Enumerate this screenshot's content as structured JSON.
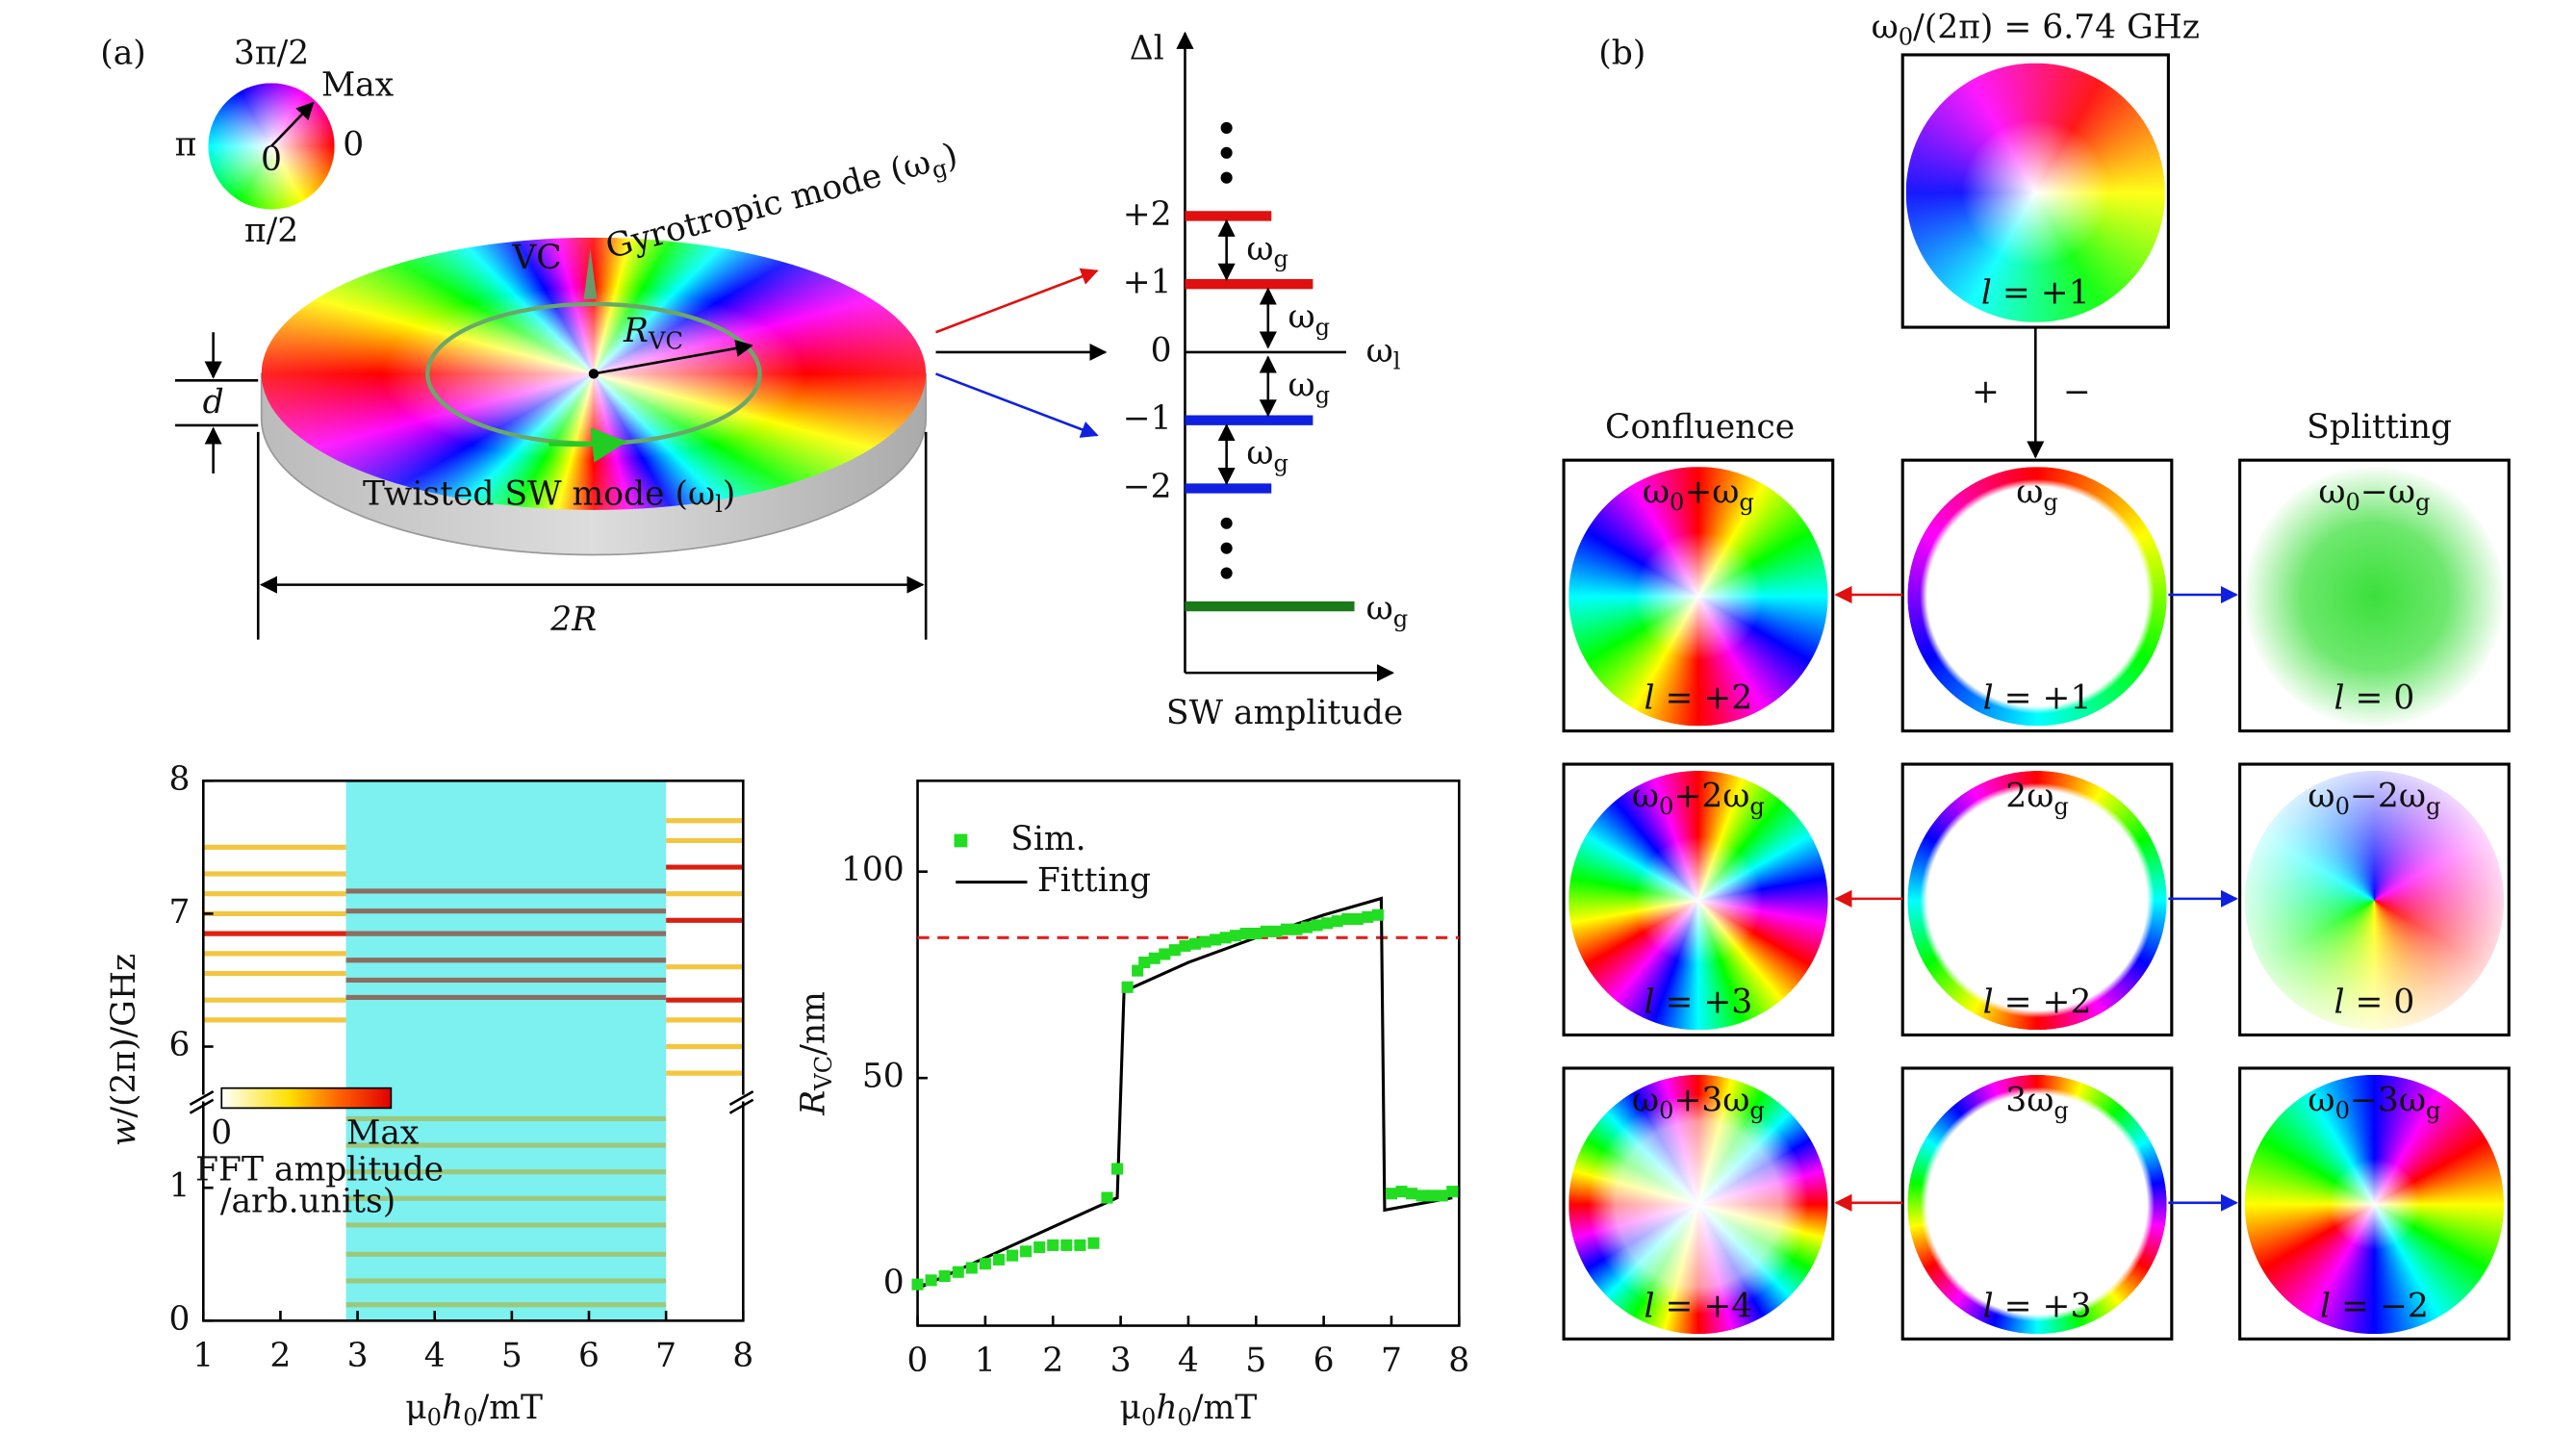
{
  "panel_a": {
    "label": "(a)",
    "wheel": {
      "top": "3π/2",
      "bottom": "π/2",
      "left": "π",
      "right": "0",
      "center": "0",
      "max": "Max"
    },
    "disk": {
      "vc": "VC",
      "gyro": [
        "Gyrotropic mode (ω",
        {
          "sub": "g"
        },
        ")"
      ],
      "rvc": [
        {
          "i": "R"
        },
        {
          "sub": "VC"
        }
      ],
      "twisted": [
        "Twisted SW mode (ω",
        {
          "sub": "l"
        },
        ")"
      ],
      "d": "d",
      "width": "2R"
    },
    "levels": {
      "axis_label": "Δl",
      "x_label": "SW amplitude",
      "ticks": [
        "+2",
        "+1",
        "0",
        "−1",
        "−2"
      ],
      "spacing": [
        "ω",
        {
          "sub": "g"
        }
      ],
      "zero_label": [
        "ω",
        {
          "sub": "l"
        }
      ],
      "ground_label": [
        "ω",
        {
          "sub": "g"
        }
      ]
    }
  },
  "chart_data": [
    {
      "type": "spectrogram",
      "xlabel": [
        "μ",
        {
          "sub": "0"
        },
        {
          "i": "h"
        },
        {
          "sub": "0"
        },
        "/mT"
      ],
      "ylabel": [
        {
          "i": "w"
        },
        "/(2π)/GHz"
      ],
      "xlim": [
        1,
        8
      ],
      "xticks": [
        1,
        2,
        3,
        4,
        5,
        6,
        7,
        8
      ],
      "ylim_lower": [
        0,
        1.65
      ],
      "ylim_upper": [
        5.65,
        8
      ],
      "yticks": [
        0,
        1,
        6,
        7,
        8
      ],
      "shaded_region": {
        "x": [
          2.85,
          7
        ],
        "color": "#7df0f0"
      },
      "colorbar": {
        "min_label": "0",
        "max_label": "Max",
        "title": "FFT amplitude",
        "units": "/arb.units)"
      },
      "modes": [
        {
          "x_range": [
            2.85,
            7
          ],
          "color": "#8c6e60",
          "values": [
            7.17,
            7.02,
            6.85,
            6.65,
            6.5,
            6.37
          ]
        },
        {
          "x_range": [
            2.85,
            7
          ],
          "color": "#9cc87c",
          "values": [
            0.12,
            0.3,
            0.5,
            0.72,
            0.92,
            1.12,
            1.32,
            1.52
          ]
        },
        {
          "x_range": [
            1,
            2.85
          ],
          "color": "#f2c640",
          "values": [
            7.5,
            7.3,
            7.15,
            7.0,
            6.7,
            6.55,
            6.35,
            6.2
          ]
        },
        {
          "x_range": [
            1,
            2.85
          ],
          "color": "#e02010",
          "values": [
            6.85
          ]
        },
        {
          "x_range": [
            7,
            8
          ],
          "color": "#f2c640",
          "values": [
            7.7,
            7.55,
            7.15,
            6.6,
            6.2,
            6.0,
            5.8
          ]
        },
        {
          "x_range": [
            7,
            8
          ],
          "color": "#d82010",
          "values": [
            7.35,
            6.95,
            6.35
          ]
        }
      ]
    },
    {
      "type": "scatter-line",
      "xlabel": [
        "μ",
        {
          "sub": "0"
        },
        {
          "i": "h"
        },
        {
          "sub": "0"
        },
        "/mT"
      ],
      "ylabel": [
        {
          "i": "R"
        },
        {
          "sub": "VC"
        },
        "/nm"
      ],
      "xlim": [
        0,
        8
      ],
      "xticks": [
        0,
        1,
        2,
        3,
        4,
        5,
        6,
        7,
        8
      ],
      "ylim": [
        -10,
        122
      ],
      "yticks": [
        0,
        50,
        100
      ],
      "hline": {
        "value": 84,
        "color": "#e02020"
      },
      "series": [
        {
          "name": "Sim.",
          "color": "#22dd22",
          "x": [
            0,
            0.2,
            0.4,
            0.6,
            0.8,
            1.0,
            1.2,
            1.4,
            1.6,
            1.8,
            2.0,
            2.2,
            2.4,
            2.6,
            2.8,
            2.95,
            3.1,
            3.25,
            3.35,
            3.5,
            3.65,
            3.8,
            3.95,
            4.1,
            4.25,
            4.4,
            4.55,
            4.7,
            4.85,
            5.0,
            5.15,
            5.3,
            5.45,
            5.6,
            5.75,
            5.9,
            6.05,
            6.2,
            6.35,
            6.5,
            6.65,
            6.8,
            7.0,
            7.15,
            7.3,
            7.45,
            7.6,
            7.75,
            7.9
          ],
          "values": [
            0,
            1,
            2,
            3,
            4,
            5,
            6,
            7,
            8,
            9,
            9.5,
            9.5,
            9.5,
            10,
            21,
            28,
            72,
            76,
            78,
            79,
            80,
            81,
            82,
            82.5,
            83,
            83.5,
            84,
            84.5,
            85,
            85,
            85.5,
            85.5,
            86,
            86,
            86.5,
            87,
            87.5,
            88,
            88.5,
            88.5,
            89,
            89.5,
            22,
            22.5,
            22,
            21.5,
            21.5,
            21.5,
            22.5
          ]
        },
        {
          "name": "Fitting",
          "color": "#000000",
          "x": [
            0,
            2.95,
            3.05,
            4,
            5,
            6,
            6.85,
            6.9,
            7.9
          ],
          "values": [
            -1,
            21,
            71,
            78,
            84,
            89.5,
            93.5,
            18,
            21
          ]
        }
      ]
    }
  ],
  "panel_b": {
    "label": "(b)",
    "top": {
      "title": [
        "ω",
        {
          "sub": "0"
        },
        "/(2π) = 6.74 GHz"
      ],
      "l": [
        {
          "i": "l"
        },
        " = +1"
      ]
    },
    "plus": "+",
    "minus": "−",
    "confluence": "Confluence",
    "splitting": "Splitting",
    "rows": [
      [
        {
          "freq": [
            "ω",
            {
              "sub": "0"
            },
            "+ω",
            {
              "sub": "g"
            }
          ],
          "l": [
            {
              "i": "l"
            },
            " = +2"
          ]
        },
        {
          "freq": [
            "ω",
            {
              "sub": "g"
            }
          ],
          "l": [
            {
              "i": "l"
            },
            " = +1"
          ]
        },
        {
          "freq": [
            "ω",
            {
              "sub": "0"
            },
            "−ω",
            {
              "sub": "g"
            }
          ],
          "l": [
            {
              "i": "l"
            },
            " = 0"
          ]
        }
      ],
      [
        {
          "freq": [
            "ω",
            {
              "sub": "0"
            },
            "+2ω",
            {
              "sub": "g"
            }
          ],
          "l": [
            {
              "i": "l"
            },
            " = +3"
          ]
        },
        {
          "freq": [
            "2ω",
            {
              "sub": "g"
            }
          ],
          "l": [
            {
              "i": "l"
            },
            " = +2"
          ]
        },
        {
          "freq": [
            "ω",
            {
              "sub": "0"
            },
            "−2ω",
            {
              "sub": "g"
            }
          ],
          "l": [
            {
              "i": "l"
            },
            " = 0"
          ]
        }
      ],
      [
        {
          "freq": [
            "ω",
            {
              "sub": "0"
            },
            "+3ω",
            {
              "sub": "g"
            }
          ],
          "l": [
            {
              "i": "l"
            },
            " = +4"
          ]
        },
        {
          "freq": [
            "3ω",
            {
              "sub": "g"
            }
          ],
          "l": [
            {
              "i": "l"
            },
            " = +3"
          ]
        },
        {
          "freq": [
            "ω",
            {
              "sub": "0"
            },
            "−3ω",
            {
              "sub": "g"
            }
          ],
          "l": [
            {
              "i": "l"
            },
            " = −2"
          ]
        }
      ]
    ]
  }
}
